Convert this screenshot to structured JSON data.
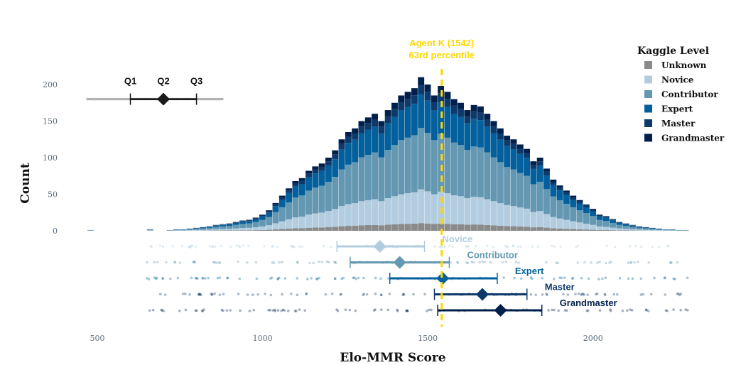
{
  "chart_data": {
    "type": "bar",
    "subtype": "stacked-histogram",
    "xlabel": "Elo-MMR Score",
    "ylabel": "Count",
    "xlim": [
      400,
      2300
    ],
    "ylim": [
      0,
      230
    ],
    "x_ticks": [
      500,
      1000,
      1500,
      2000
    ],
    "y_ticks": [
      0,
      50,
      100,
      150,
      200
    ],
    "grid": false,
    "legend": {
      "title": "Kaggle Level",
      "position": "top-right",
      "entries": [
        {
          "name": "Unknown",
          "color": "#8a8a8a"
        },
        {
          "name": "Novice",
          "color": "#b3cde0"
        },
        {
          "name": "Contributor",
          "color": "#6497b1"
        },
        {
          "name": "Expert",
          "color": "#03609c"
        },
        {
          "name": "Master",
          "color": "#0e3a6b"
        },
        {
          "name": "Grandmaster",
          "color": "#011f4b"
        }
      ]
    },
    "bin_width": 20,
    "bin_starts": [
      470,
      490,
      510,
      530,
      550,
      570,
      590,
      610,
      630,
      650,
      670,
      690,
      710,
      730,
      750,
      770,
      790,
      810,
      830,
      850,
      870,
      890,
      910,
      930,
      950,
      970,
      990,
      1010,
      1030,
      1050,
      1070,
      1090,
      1110,
      1130,
      1150,
      1170,
      1190,
      1210,
      1230,
      1250,
      1270,
      1290,
      1310,
      1330,
      1350,
      1370,
      1390,
      1410,
      1430,
      1450,
      1470,
      1490,
      1510,
      1530,
      1550,
      1570,
      1590,
      1610,
      1630,
      1650,
      1670,
      1690,
      1710,
      1730,
      1750,
      1770,
      1790,
      1810,
      1830,
      1850,
      1870,
      1890,
      1910,
      1930,
      1950,
      1970,
      1990,
      2010,
      2030,
      2050,
      2070,
      2090,
      2110,
      2130,
      2150,
      2170,
      2190,
      2210,
      2230,
      2250,
      2270
    ],
    "bin_totals": [
      1,
      0,
      0,
      0,
      0,
      0,
      0,
      0,
      0,
      2,
      0,
      0,
      1,
      2,
      2,
      3,
      4,
      5,
      6,
      8,
      9,
      10,
      12,
      14,
      15,
      18,
      22,
      28,
      38,
      48,
      58,
      68,
      72,
      82,
      88,
      92,
      100,
      110,
      125,
      135,
      140,
      150,
      155,
      160,
      150,
      165,
      175,
      185,
      190,
      195,
      210,
      200,
      185,
      198,
      190,
      180,
      175,
      165,
      172,
      170,
      160,
      150,
      140,
      130,
      125,
      118,
      112,
      95,
      100,
      85,
      70,
      62,
      55,
      48,
      42,
      36,
      30,
      22,
      20,
      16,
      12,
      10,
      8,
      6,
      5,
      4,
      3,
      2,
      2,
      1,
      1
    ],
    "series_shares": {
      "Unknown": 0.05,
      "Novice": 0.22,
      "Contributor": 0.4,
      "Expert": 0.22,
      "Master": 0.06,
      "Grandmaster": 0.05
    },
    "marker": {
      "label": "Agent K (1542)",
      "sublabel": "63rd percentile",
      "x": 1542,
      "color": "#ffd700"
    },
    "overall_box": {
      "labels": [
        "Q1",
        "Q2",
        "Q3"
      ],
      "q1": 600,
      "median": 700,
      "q3": 800,
      "count_level": 180
    },
    "level_boxes": [
      {
        "name": "Novice",
        "q1": 1225,
        "median": 1355,
        "q3": 1490,
        "color": "#b3cde0"
      },
      {
        "name": "Contributor",
        "q1": 1265,
        "median": 1415,
        "q3": 1565,
        "color": "#6497b1"
      },
      {
        "name": "Expert",
        "q1": 1385,
        "median": 1545,
        "q3": 1710,
        "color": "#03609c"
      },
      {
        "name": "Master",
        "q1": 1520,
        "median": 1665,
        "q3": 1800,
        "color": "#0e3a6b"
      },
      {
        "name": "Grandmaster",
        "q1": 1530,
        "median": 1720,
        "q3": 1845,
        "color": "#011f4b"
      }
    ]
  }
}
